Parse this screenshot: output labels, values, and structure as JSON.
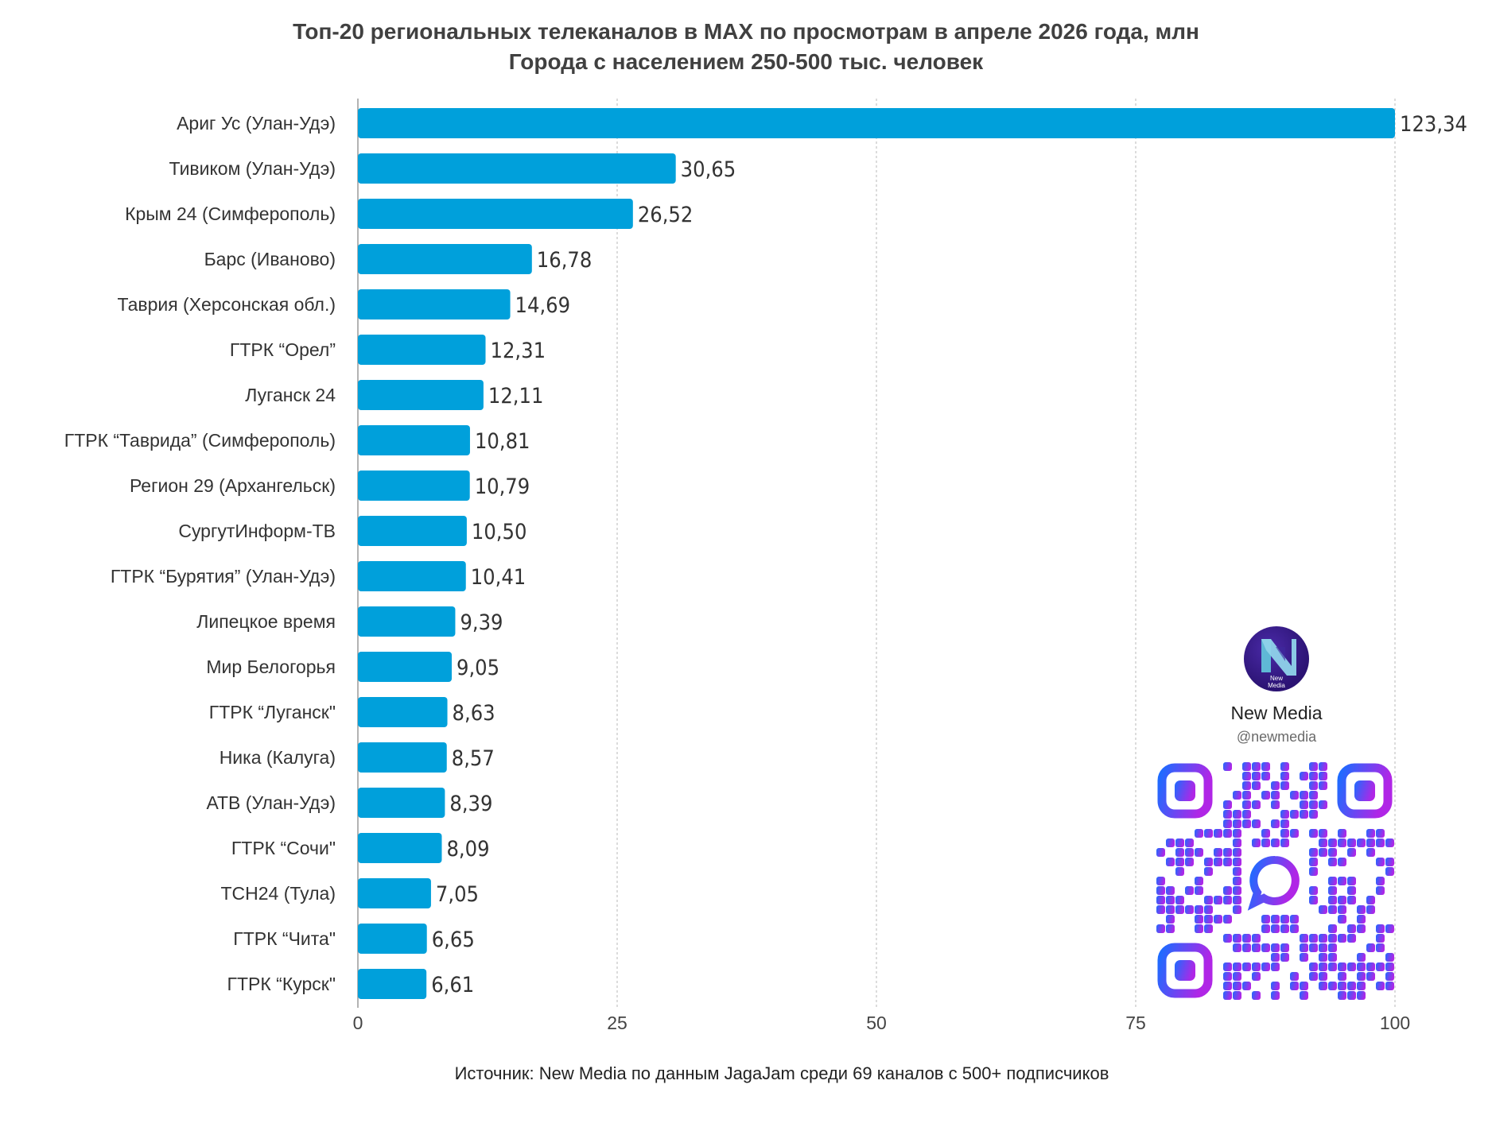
{
  "header": {
    "title_line1": "Топ-20 региональных телеканалов в MAX по просмотрам в апреле 2026 года, млн",
    "title_line2": "Города с населением 250-500 тыс. человек"
  },
  "footer": {
    "source": "Источник: New Media по данным JagaJam среди 69 каналов с 500+ подписчиков"
  },
  "brand": {
    "logo_text": "New\nMedia",
    "name": "New Media",
    "handle": "@newmedia"
  },
  "colors": {
    "bar": "#00a0db",
    "grid": "#b8b8b8",
    "axis": "#9a9a9a",
    "qr_start": "#1e6bff",
    "qr_end": "#b026e6"
  },
  "chart_data": {
    "type": "bar",
    "orientation": "horizontal",
    "title": "Топ-20 региональных телеканалов в MAX по просмотрам в апреле 2026 года, млн",
    "subtitle": "Города с населением 250-500 тыс. человек",
    "xlabel": "",
    "ylabel": "",
    "xlim": [
      0,
      100
    ],
    "ticks": [
      "0",
      "25",
      "50",
      "75",
      "100"
    ],
    "grid": true,
    "categories": [
      "Ариг Ус (Улан-Удэ)",
      "Тивиком (Улан-Удэ)",
      "Крым 24 (Симферополь)",
      "Барс (Иваново)",
      "Таврия (Херсонская обл.)",
      "ГТРК “Орел”",
      "Луганск 24",
      "ГТРК “Таврида” (Симферополь)",
      "Регион 29 (Архангельск)",
      "СургутИнформ-ТВ",
      "ГТРК “Бурятия” (Улан-Удэ)",
      "Липецкое время",
      "Мир Белогорья",
      "ГТРК “Луганск\"",
      "Ника (Калуга)",
      "АТВ (Улан-Удэ)",
      "ГТРК “Сочи\"",
      "ТСН24 (Тула)",
      "ГТРК “Чита\"",
      "ГТРК “Курск\""
    ],
    "values": [
      123.34,
      30.65,
      26.52,
      16.78,
      14.69,
      12.31,
      12.11,
      10.81,
      10.79,
      10.5,
      10.41,
      9.39,
      9.05,
      8.63,
      8.57,
      8.39,
      8.09,
      7.05,
      6.65,
      6.61
    ],
    "value_labels": [
      "123,34",
      "30,65",
      "26,52",
      "16,78",
      "14,69",
      "12,31",
      "12,11",
      "10,81",
      "10,79",
      "10,50",
      "10,41",
      "9,39",
      "9,05",
      "8,63",
      "8,57",
      "8,39",
      "8,09",
      "7,05",
      "6,65",
      "6,61"
    ]
  }
}
